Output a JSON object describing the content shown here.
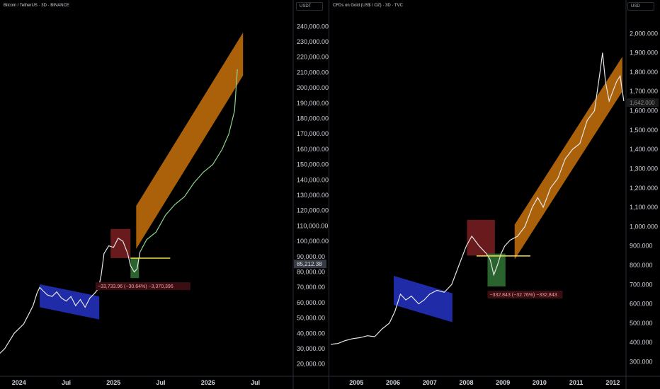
{
  "left": {
    "title": "Bitcoin / TetherUS · 3D · BINANCE",
    "unit": "USDT",
    "current_price": "85,212.38",
    "annotation": "−33,733.96 (−30.64%) −3,370,396"
  },
  "right": {
    "title": "CFDs on Gold (US$ / OZ) · 3D · TVC",
    "unit": "USD",
    "current_price": "1,642.000",
    "annotation": "−332.843 (−32.76%) −332,843"
  },
  "colors": {
    "price_line": "#e6e6e6",
    "projection_line": "#8fd48f",
    "accumulation_box": "#2433c4",
    "peak_box": "#7a1f22",
    "drawdown_box": "#2f6e32",
    "uptrend_channel": "#c8720c",
    "support_line": "#f2e14c"
  },
  "chart_data": [
    {
      "type": "line",
      "title": "Bitcoin / TetherUS · 3D · BINANCE",
      "ylabel": "USDT",
      "ylim": [
        12000,
        248000
      ],
      "yticks": [
        "20,000.00",
        "30,000.00",
        "40,000.00",
        "50,000.00",
        "60,000.00",
        "70,000.00",
        "80,000.00",
        "90,000.00",
        "100,000.00",
        "110,000.00",
        "120,000.00",
        "130,000.00",
        "140,000.00",
        "150,000.00",
        "160,000.00",
        "170,000.00",
        "180,000.00",
        "190,000.00",
        "200,000.00",
        "210,000.00",
        "220,000.00",
        "230,000.00",
        "240,000.00"
      ],
      "ytick_values": [
        20000,
        30000,
        40000,
        50000,
        60000,
        70000,
        80000,
        90000,
        100000,
        110000,
        120000,
        130000,
        140000,
        150000,
        160000,
        170000,
        180000,
        190000,
        200000,
        210000,
        220000,
        230000,
        240000
      ],
      "xticks": [
        "2024",
        "Jul",
        "2025",
        "Jul",
        "2026",
        "Jul"
      ],
      "xtick_values": [
        2024.0,
        2024.5,
        2025.0,
        2025.5,
        2026.0,
        2026.5
      ],
      "xlim": [
        2023.8,
        2026.9
      ],
      "series": [
        {
          "kind": "history",
          "x": [
            2023.8,
            2023.85,
            2023.9,
            2023.95,
            2024.0,
            2024.05,
            2024.1,
            2024.15,
            2024.19,
            2024.22,
            2024.25,
            2024.3,
            2024.35,
            2024.4,
            2024.45,
            2024.5,
            2024.55,
            2024.6,
            2024.65,
            2024.7,
            2024.75,
            2024.8,
            2024.84,
            2024.87,
            2024.9,
            2024.95,
            2025.0,
            2025.05,
            2025.1,
            2025.15,
            2025.18,
            2025.22,
            2025.25,
            2025.28
          ],
          "y": [
            27000,
            30000,
            35000,
            40000,
            43000,
            46000,
            52000,
            58000,
            66000,
            70000,
            68000,
            65000,
            64000,
            67000,
            63000,
            61000,
            64000,
            58000,
            62000,
            57000,
            63000,
            66000,
            69000,
            78000,
            92000,
            97000,
            96000,
            102000,
            100000,
            92000,
            84000,
            80000,
            82000,
            93000
          ]
        },
        {
          "kind": "projection",
          "x": [
            2025.28,
            2025.35,
            2025.45,
            2025.55,
            2025.65,
            2025.75,
            2025.85,
            2025.95,
            2026.05,
            2026.15,
            2026.22,
            2026.28,
            2026.31
          ],
          "y": [
            93000,
            101000,
            106000,
            117000,
            124000,
            129000,
            138000,
            145000,
            150000,
            160000,
            170000,
            185000,
            212000
          ]
        }
      ],
      "zones": [
        {
          "name": "accumulation",
          "start": 2024.22,
          "end": 2024.85,
          "top_start": 72000,
          "top_end": 64000,
          "height": 15000
        },
        {
          "name": "peak-range",
          "start": 2024.97,
          "end": 2025.18,
          "low": 89000,
          "high": 108000
        },
        {
          "name": "drawdown",
          "start": 2025.18,
          "end": 2025.27,
          "low": 76000,
          "high": 89000
        },
        {
          "name": "uptrend-channel",
          "start": 2025.24,
          "end": 2026.37,
          "low_start": 95000,
          "low_end": 208000,
          "width": 28000
        },
        {
          "name": "support",
          "start": 2025.18,
          "end": 2025.6,
          "value": 89000
        }
      ]
    },
    {
      "type": "line",
      "title": "CFDs on Gold (US$ / OZ) · 3D · TVC",
      "ylabel": "USD",
      "ylim": [
        225,
        2100
      ],
      "yticks": [
        "300.000",
        "400.000",
        "500.000",
        "600.000",
        "700.000",
        "800.000",
        "900.000",
        "1,000.000",
        "1,100.000",
        "1,200.000",
        "1,300.000",
        "1,400.000",
        "1,500.000",
        "1,600.000",
        "1,700.000",
        "1,800.000",
        "1,900.000",
        "2,000.000"
      ],
      "ytick_values": [
        300,
        400,
        500,
        600,
        700,
        800,
        900,
        1000,
        1100,
        1200,
        1300,
        1400,
        1500,
        1600,
        1700,
        1800,
        1900,
        2000
      ],
      "xticks": [
        "2005",
        "2006",
        "2007",
        "2008",
        "2009",
        "2010",
        "2011",
        "2012"
      ],
      "xtick_values": [
        2005,
        2006,
        2007,
        2008,
        2009,
        2010,
        2011,
        2012
      ],
      "xlim": [
        2004.26,
        2012.36
      ],
      "series": [
        {
          "kind": "history",
          "x": [
            2004.3,
            2004.5,
            2004.7,
            2004.9,
            2005.1,
            2005.3,
            2005.5,
            2005.7,
            2005.9,
            2006.05,
            2006.2,
            2006.35,
            2006.5,
            2006.7,
            2006.85,
            2007.0,
            2007.2,
            2007.4,
            2007.6,
            2007.8,
            2008.0,
            2008.15,
            2008.35,
            2008.55,
            2008.65,
            2008.75,
            2008.85,
            2008.95,
            2009.05,
            2009.2,
            2009.4,
            2009.6,
            2009.8,
            2009.95,
            2010.1,
            2010.3,
            2010.5,
            2010.7,
            2010.9,
            2011.1,
            2011.3,
            2011.5,
            2011.65,
            2011.72,
            2011.8,
            2011.9,
            2012.0,
            2012.1,
            2012.2,
            2012.3
          ],
          "y": [
            390,
            395,
            410,
            420,
            425,
            435,
            430,
            470,
            500,
            560,
            650,
            620,
            640,
            600,
            620,
            650,
            670,
            660,
            700,
            800,
            900,
            950,
            900,
            860,
            830,
            750,
            800,
            860,
            900,
            930,
            950,
            1000,
            1100,
            1150,
            1100,
            1200,
            1250,
            1350,
            1400,
            1430,
            1550,
            1600,
            1800,
            1900,
            1750,
            1650,
            1700,
            1750,
            1780,
            1650
          ]
        }
      ],
      "zones": [
        {
          "name": "accumulation",
          "start": 2006.02,
          "end": 2007.62,
          "top_start": 745,
          "top_end": 655,
          "height": 150
        },
        {
          "name": "peak-range",
          "start": 2008.02,
          "end": 2008.78,
          "low": 850,
          "high": 1035
        },
        {
          "name": "drawdown",
          "start": 2008.58,
          "end": 2009.07,
          "low": 690,
          "high": 860
        },
        {
          "name": "uptrend-channel",
          "start": 2009.32,
          "end": 2012.26,
          "low_start": 830,
          "low_end": 1700,
          "width": 180
        },
        {
          "name": "support",
          "start": 2008.28,
          "end": 2009.75,
          "value": 848
        }
      ]
    }
  ]
}
